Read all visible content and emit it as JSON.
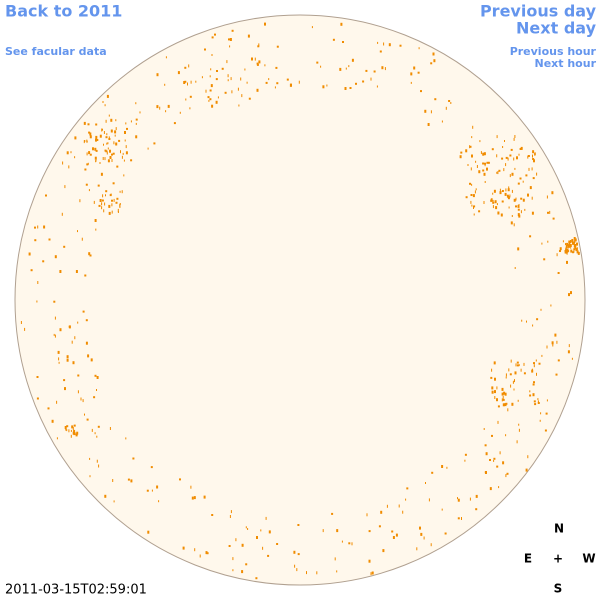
{
  "links": {
    "back": "Back to 2011",
    "facular": "See facular data",
    "previous_day": "Previous day",
    "next_day": "Next day",
    "previous_hour": "Previous hour",
    "next_hour": "Next hour"
  },
  "compass": {
    "north": "N",
    "east": "E",
    "center": "+",
    "west": "W",
    "south": "S"
  },
  "timestamp": "2011-03-15T02:59:01"
}
